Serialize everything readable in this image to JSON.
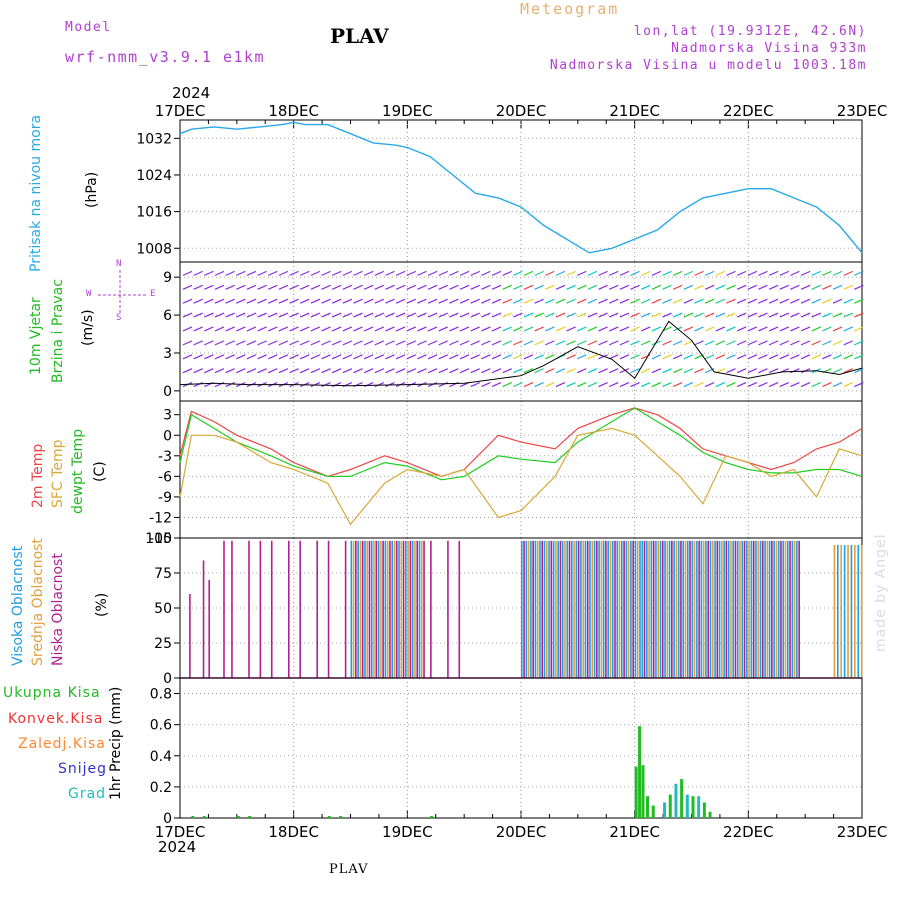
{
  "header": {
    "model_label": "Model",
    "model_name": "wrf-nmm_v3.9.1 e1km",
    "title": "PLAV",
    "meteogram": "Meteogram",
    "lonlat": "lon,lat (19.9312E, 42.6N)",
    "altitude": "Nadmorska Visina 933m",
    "model_altitude": "Nadmorska Visina u modelu 1003.18m",
    "year_top": "2024",
    "year_bottom": "2024",
    "footer": "PLAV",
    "credit": "made by Angel"
  },
  "colors": {
    "pressure": "#2aa8e8",
    "temp2m": "#ee4444",
    "sfc": "#d8a838",
    "dewpoint": "#22cc22",
    "wind_purple": "#8a2be2",
    "wind_speed": "#000000",
    "cloud_high": "#1e9fe0",
    "cloud_mid": "#e0a040",
    "cloud_low": "#b02090",
    "precip_total": "#22bb22",
    "precip_conv": "#ee3333",
    "precip_frozen": "#ff8833",
    "precip_snow": "#3333cc",
    "precip_grad": "#22bbbb"
  },
  "time_axis": {
    "labels": [
      "17DEC",
      "18DEC",
      "19DEC",
      "20DEC",
      "21DEC",
      "22DEC",
      "23DEC"
    ]
  },
  "labels": {
    "pressure": {
      "name": "Pritisak na nivou mora",
      "unit": "(hPa)"
    },
    "wind": {
      "line1": "10m Vjetar",
      "line2": "Brzina i Pravac",
      "unit": "(m/s)",
      "compass_n": "N",
      "compass_s": "S",
      "compass_w": "W",
      "compass_e": "E"
    },
    "temp": {
      "t2m": "2m Temp",
      "sfc": "SFC Temp",
      "dew": "dewpt Temp",
      "unit": "(C)"
    },
    "cloud": {
      "high": "Visoka Oblacnost",
      "mid": "Srednja Oblacnost",
      "low": "Niska Oblacnost",
      "unit": "(%)"
    },
    "precip": {
      "total": "Ukupna Kisa",
      "conv": "Konvek.Kisa",
      "frozen": "Zaledj.Kisa",
      "snow": "Snijeg",
      "grad": "Grad",
      "unit": "1hr Precip (mm)"
    }
  },
  "chart_data": [
    {
      "type": "line",
      "name": "pressure",
      "ylim": [
        1005,
        1036
      ],
      "yticks": [
        "1008",
        "1016",
        "1024",
        "1032"
      ],
      "yticks_v": [
        1008,
        1016,
        1024,
        1032
      ],
      "x": [
        0,
        0.1,
        0.3,
        0.5,
        0.7,
        0.9,
        1.0,
        1.1,
        1.3,
        1.5,
        1.7,
        1.9,
        2.0,
        2.2,
        2.4,
        2.6,
        2.8,
        3.0,
        3.2,
        3.4,
        3.6,
        3.8,
        4.0,
        4.2,
        4.4,
        4.6,
        4.8,
        5.0,
        5.2,
        5.4,
        5.6,
        5.8,
        6.0
      ],
      "values": [
        1033,
        1034,
        1034.5,
        1034,
        1034.5,
        1035,
        1035.5,
        1035,
        1035,
        1033,
        1031,
        1030.5,
        1030,
        1028,
        1024,
        1020,
        1019,
        1017,
        1013,
        1010,
        1007,
        1008,
        1010,
        1012,
        1016,
        1019,
        1020,
        1021,
        1021,
        1019,
        1017,
        1013,
        1007
      ]
    },
    {
      "type": "line",
      "name": "wind_speed",
      "ylim": [
        -0.8,
        10.2
      ],
      "yticks": [
        "0",
        "3",
        "6",
        "9"
      ],
      "yticks_v": [
        0,
        3,
        6,
        9
      ],
      "x": [
        0,
        0.3,
        0.6,
        1.0,
        1.5,
        2.0,
        2.5,
        3.0,
        3.2,
        3.5,
        3.8,
        4.0,
        4.1,
        4.3,
        4.5,
        4.7,
        5.0,
        5.3,
        5.6,
        5.8,
        6.0
      ],
      "values": [
        0.5,
        0.6,
        0.5,
        0.5,
        0.4,
        0.5,
        0.6,
        1.2,
        2.0,
        3.5,
        2.5,
        1.0,
        2.5,
        5.5,
        4.0,
        1.5,
        1.0,
        1.5,
        1.6,
        1.3,
        1.8
      ]
    },
    {
      "type": "line",
      "name": "temperatures",
      "ylim": [
        -15,
        5
      ],
      "yticks": [
        "-15",
        "-12",
        "-9",
        "-6",
        "-3",
        "0",
        "3"
      ],
      "yticks_v": [
        -15,
        -12,
        -9,
        -6,
        -3,
        0,
        3
      ],
      "x": [
        0,
        0.1,
        0.3,
        0.5,
        0.8,
        1.0,
        1.3,
        1.5,
        1.8,
        2.0,
        2.3,
        2.5,
        2.8,
        3.0,
        3.3,
        3.5,
        3.8,
        4.0,
        4.2,
        4.4,
        4.6,
        4.8,
        5.0,
        5.2,
        5.4,
        5.6,
        5.8,
        6.0
      ],
      "series": [
        {
          "key": "temp2m",
          "values": [
            -3,
            3.5,
            2,
            0,
            -2,
            -4,
            -6,
            -5,
            -3,
            -4,
            -6,
            -5,
            0,
            -1,
            -2,
            1,
            3,
            4,
            3,
            1,
            -2,
            -3,
            -4,
            -5,
            -4,
            -2,
            -1,
            1
          ]
        },
        {
          "key": "dewpoint",
          "values": [
            -4,
            3,
            1,
            -1,
            -3,
            -4.5,
            -6,
            -6,
            -4,
            -4.5,
            -6.5,
            -6,
            -3,
            -3.5,
            -4,
            -1,
            2,
            4,
            2,
            0,
            -2.5,
            -4,
            -5,
            -5.5,
            -5.5,
            -5,
            -5,
            -6
          ]
        },
        {
          "key": "sfc",
          "values": [
            -9,
            0,
            0,
            -1,
            -4,
            -5,
            -7,
            -13,
            -7,
            -5,
            -6,
            -5,
            -12,
            -11,
            -6,
            0,
            1,
            0,
            -3,
            -6,
            -10,
            -3,
            -4,
            -6,
            -5,
            -9,
            -2,
            -3
          ]
        }
      ]
    },
    {
      "type": "bar",
      "name": "cloud",
      "ylim": [
        0,
        100
      ],
      "yticks": [
        "0",
        "25",
        "50",
        "75",
        "100"
      ],
      "yticks_v": [
        0,
        25,
        50,
        75,
        100
      ]
    },
    {
      "type": "bar",
      "name": "precip",
      "ylim": [
        0,
        0.9
      ],
      "yticks": [
        "0",
        "0.2",
        "0.4",
        "0.6",
        "0.8"
      ],
      "yticks_v": [
        0,
        0.2,
        0.4,
        0.6,
        0.8
      ],
      "total": {
        "x": [
          4.0,
          4.03,
          4.06,
          4.1,
          4.15,
          4.25,
          4.3,
          4.35,
          4.4,
          4.45,
          4.5,
          4.55,
          4.6,
          4.65
        ],
        "values": [
          0.33,
          0.59,
          0.34,
          0.14,
          0.08,
          0.1,
          0.15,
          0.22,
          0.25,
          0.15,
          0.14,
          0.14,
          0.1,
          0.04
        ]
      }
    }
  ]
}
